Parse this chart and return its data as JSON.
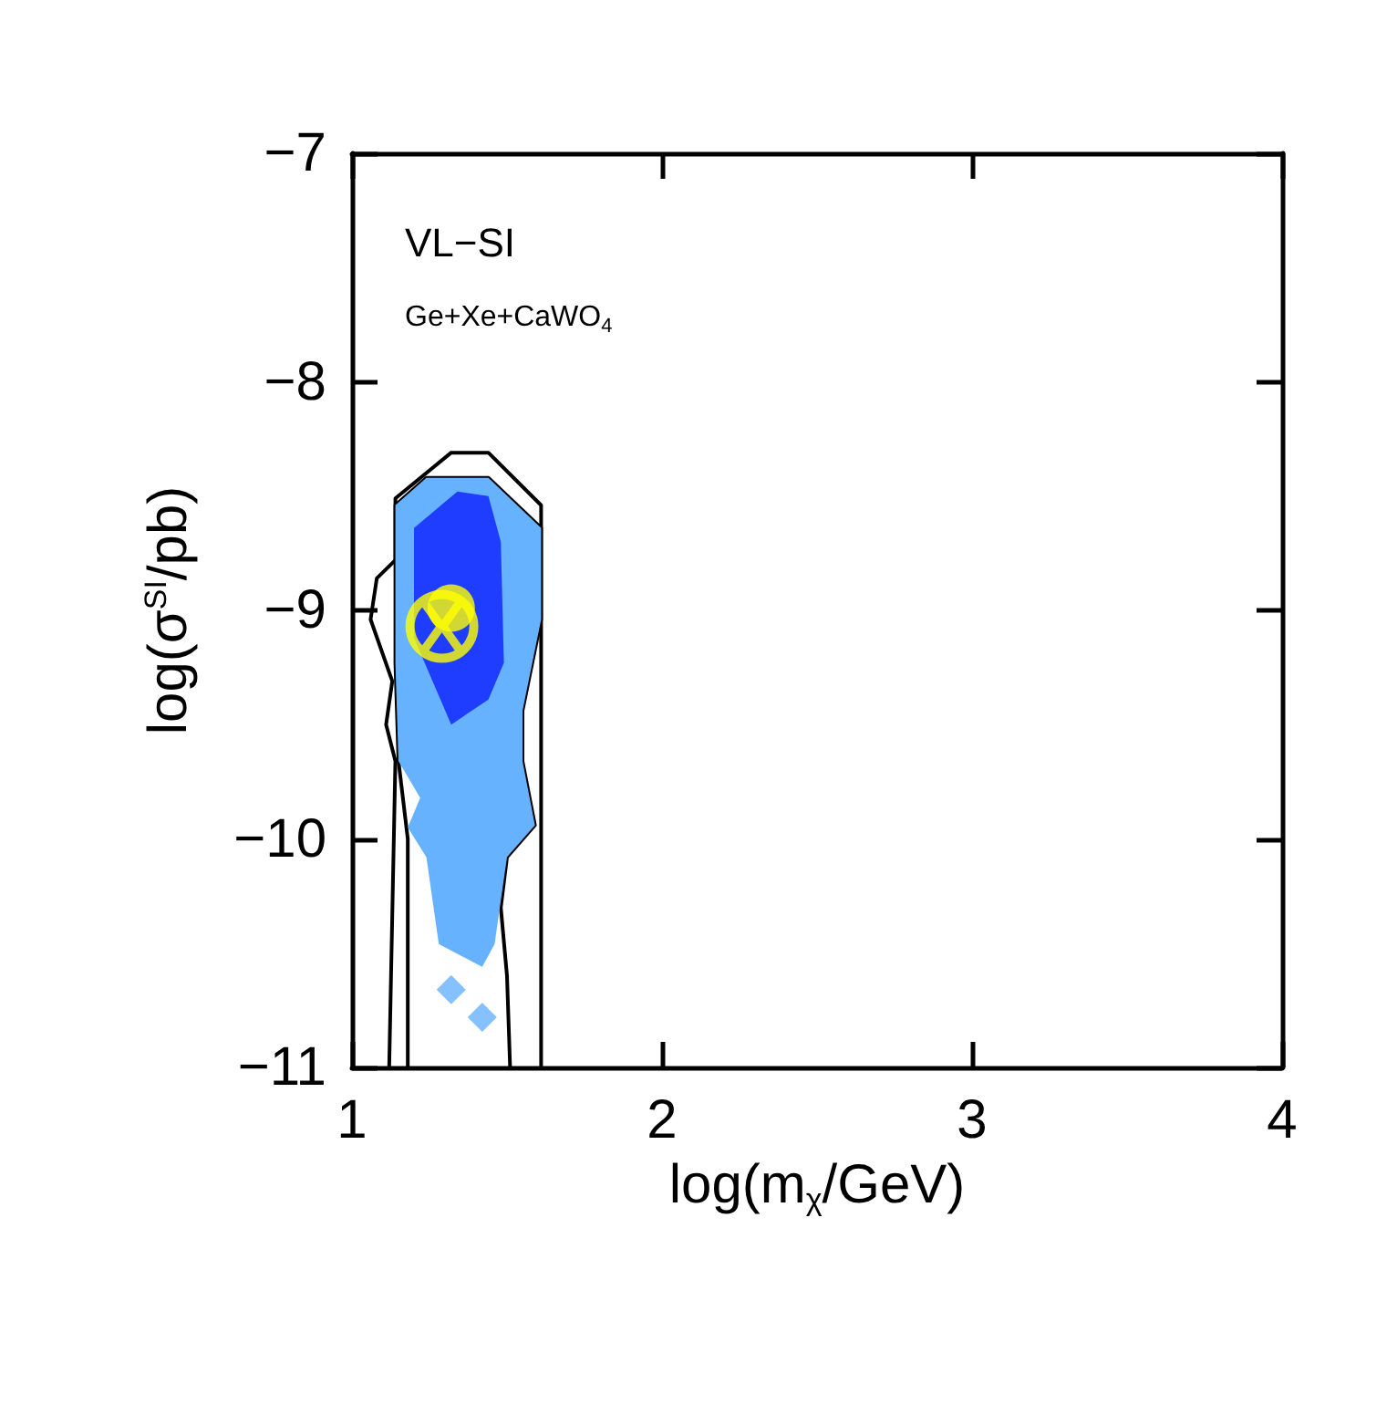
{
  "chart_data": {
    "type": "line",
    "xlabel": "log(m$_{χ}$/GeV)",
    "ylabel": "log(σ$^{SI}$/pb)",
    "annotations": [
      "VL−SI",
      "Ge+Xe+CaWO$_{4}$"
    ],
    "xlim": [
      1,
      4
    ],
    "xticks": [
      1,
      2,
      3,
      4
    ],
    "ylim": [
      -11,
      -7
    ],
    "yticks": [
      {
        "value": -11,
        "label": "−11"
      },
      {
        "value": -10,
        "label": "−10"
      },
      {
        "value": -9,
        "label": "−9"
      },
      {
        "value": -8,
        "label": "−8"
      },
      {
        "value": -7,
        "label": "−7"
      }
    ],
    "grid": false,
    "series": [
      {
        "color": "#000000",
        "marker": "none",
        "x": [
          1.12,
          1.14,
          1.11,
          1.13,
          1.06,
          1.08,
          1.14,
          1.14,
          1.32,
          1.44,
          1.61,
          1.61
        ],
        "values": [
          -11,
          -9.66,
          -9.5,
          -9.31,
          -9.04,
          -8.86,
          -8.78,
          -8.51,
          -8.31,
          -8.31,
          -8.54,
          -11
        ]
      },
      {
        "color": "#000000",
        "marker": "none",
        "x": [
          1.18,
          1.18,
          1.15,
          1.14,
          1.14,
          1.24,
          1.44,
          1.61,
          1.61,
          1.55,
          1.55,
          1.59,
          1.5,
          1.48,
          1.5,
          1.51
        ],
        "values": [
          -11,
          -10.0,
          -9.66,
          -9.23,
          -8.54,
          -8.42,
          -8.42,
          -8.64,
          -9.04,
          -9.44,
          -9.66,
          -9.94,
          -10.08,
          -10.3,
          -10.6,
          -11
        ]
      },
      {
        "type": "area",
        "color": "#66b2ff",
        "x": [
          1.14,
          1.24,
          1.44,
          1.61,
          1.61,
          1.55,
          1.55,
          1.59,
          1.5,
          1.46,
          1.42,
          1.28,
          1.24,
          1.18,
          1.22,
          1.15,
          1.14
        ],
        "values": [
          -8.54,
          -8.42,
          -8.42,
          -8.64,
          -9.04,
          -9.44,
          -9.66,
          -9.94,
          -10.08,
          -10.46,
          -10.56,
          -10.46,
          -10.08,
          -9.95,
          -9.82,
          -9.66,
          -9.23
        ]
      },
      {
        "type": "scatter",
        "color": "#66b2ff",
        "marker": "diamond",
        "x": [
          1.32,
          1.42
        ],
        "values": [
          -10.66,
          -10.78
        ]
      },
      {
        "type": "area",
        "color": "#1f3dff",
        "x": [
          1.2,
          1.34,
          1.44,
          1.48,
          1.49,
          1.44,
          1.32,
          1.26,
          1.2
        ],
        "values": [
          -8.64,
          -8.48,
          -8.5,
          -8.7,
          -9.23,
          -9.39,
          -9.5,
          -9.31,
          -9.12
        ]
      },
      {
        "type": "scatter",
        "color": "#ffff00",
        "marker": "circle",
        "x": [
          1.32
        ],
        "values": [
          -8.99
        ]
      },
      {
        "type": "scatter",
        "color": "#ffff00",
        "marker": "cross",
        "x": [
          1.29
        ],
        "values": [
          -9.07
        ]
      }
    ]
  }
}
